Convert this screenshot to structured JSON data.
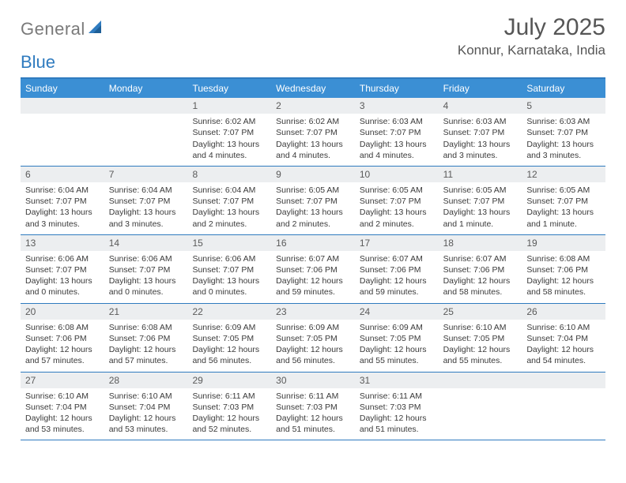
{
  "brand": {
    "part1": "General",
    "part2": "Blue"
  },
  "header": {
    "month_title": "July 2025",
    "location": "Konnur, Karnataka, India"
  },
  "colors": {
    "header_bar": "#3b8fd4",
    "accent_border": "#2f7bbf",
    "daynum_bg": "#eceef0",
    "logo_gray": "#7a7a7a",
    "logo_blue": "#2f7bbf",
    "text": "#3a3a3a"
  },
  "day_names": [
    "Sunday",
    "Monday",
    "Tuesday",
    "Wednesday",
    "Thursday",
    "Friday",
    "Saturday"
  ],
  "labels": {
    "sunrise_prefix": "Sunrise: ",
    "sunset_prefix": "Sunset: ",
    "daylight_prefix": "Daylight: "
  },
  "weeks": [
    [
      null,
      null,
      {
        "num": "1",
        "sunrise": "6:02 AM",
        "sunset": "7:07 PM",
        "daylight": "13 hours and 4 minutes."
      },
      {
        "num": "2",
        "sunrise": "6:02 AM",
        "sunset": "7:07 PM",
        "daylight": "13 hours and 4 minutes."
      },
      {
        "num": "3",
        "sunrise": "6:03 AM",
        "sunset": "7:07 PM",
        "daylight": "13 hours and 4 minutes."
      },
      {
        "num": "4",
        "sunrise": "6:03 AM",
        "sunset": "7:07 PM",
        "daylight": "13 hours and 3 minutes."
      },
      {
        "num": "5",
        "sunrise": "6:03 AM",
        "sunset": "7:07 PM",
        "daylight": "13 hours and 3 minutes."
      }
    ],
    [
      {
        "num": "6",
        "sunrise": "6:04 AM",
        "sunset": "7:07 PM",
        "daylight": "13 hours and 3 minutes."
      },
      {
        "num": "7",
        "sunrise": "6:04 AM",
        "sunset": "7:07 PM",
        "daylight": "13 hours and 3 minutes."
      },
      {
        "num": "8",
        "sunrise": "6:04 AM",
        "sunset": "7:07 PM",
        "daylight": "13 hours and 2 minutes."
      },
      {
        "num": "9",
        "sunrise": "6:05 AM",
        "sunset": "7:07 PM",
        "daylight": "13 hours and 2 minutes."
      },
      {
        "num": "10",
        "sunrise": "6:05 AM",
        "sunset": "7:07 PM",
        "daylight": "13 hours and 2 minutes."
      },
      {
        "num": "11",
        "sunrise": "6:05 AM",
        "sunset": "7:07 PM",
        "daylight": "13 hours and 1 minute."
      },
      {
        "num": "12",
        "sunrise": "6:05 AM",
        "sunset": "7:07 PM",
        "daylight": "13 hours and 1 minute."
      }
    ],
    [
      {
        "num": "13",
        "sunrise": "6:06 AM",
        "sunset": "7:07 PM",
        "daylight": "13 hours and 0 minutes."
      },
      {
        "num": "14",
        "sunrise": "6:06 AM",
        "sunset": "7:07 PM",
        "daylight": "13 hours and 0 minutes."
      },
      {
        "num": "15",
        "sunrise": "6:06 AM",
        "sunset": "7:07 PM",
        "daylight": "13 hours and 0 minutes."
      },
      {
        "num": "16",
        "sunrise": "6:07 AM",
        "sunset": "7:06 PM",
        "daylight": "12 hours and 59 minutes."
      },
      {
        "num": "17",
        "sunrise": "6:07 AM",
        "sunset": "7:06 PM",
        "daylight": "12 hours and 59 minutes."
      },
      {
        "num": "18",
        "sunrise": "6:07 AM",
        "sunset": "7:06 PM",
        "daylight": "12 hours and 58 minutes."
      },
      {
        "num": "19",
        "sunrise": "6:08 AM",
        "sunset": "7:06 PM",
        "daylight": "12 hours and 58 minutes."
      }
    ],
    [
      {
        "num": "20",
        "sunrise": "6:08 AM",
        "sunset": "7:06 PM",
        "daylight": "12 hours and 57 minutes."
      },
      {
        "num": "21",
        "sunrise": "6:08 AM",
        "sunset": "7:06 PM",
        "daylight": "12 hours and 57 minutes."
      },
      {
        "num": "22",
        "sunrise": "6:09 AM",
        "sunset": "7:05 PM",
        "daylight": "12 hours and 56 minutes."
      },
      {
        "num": "23",
        "sunrise": "6:09 AM",
        "sunset": "7:05 PM",
        "daylight": "12 hours and 56 minutes."
      },
      {
        "num": "24",
        "sunrise": "6:09 AM",
        "sunset": "7:05 PM",
        "daylight": "12 hours and 55 minutes."
      },
      {
        "num": "25",
        "sunrise": "6:10 AM",
        "sunset": "7:05 PM",
        "daylight": "12 hours and 55 minutes."
      },
      {
        "num": "26",
        "sunrise": "6:10 AM",
        "sunset": "7:04 PM",
        "daylight": "12 hours and 54 minutes."
      }
    ],
    [
      {
        "num": "27",
        "sunrise": "6:10 AM",
        "sunset": "7:04 PM",
        "daylight": "12 hours and 53 minutes."
      },
      {
        "num": "28",
        "sunrise": "6:10 AM",
        "sunset": "7:04 PM",
        "daylight": "12 hours and 53 minutes."
      },
      {
        "num": "29",
        "sunrise": "6:11 AM",
        "sunset": "7:03 PM",
        "daylight": "12 hours and 52 minutes."
      },
      {
        "num": "30",
        "sunrise": "6:11 AM",
        "sunset": "7:03 PM",
        "daylight": "12 hours and 51 minutes."
      },
      {
        "num": "31",
        "sunrise": "6:11 AM",
        "sunset": "7:03 PM",
        "daylight": "12 hours and 51 minutes."
      },
      null,
      null
    ]
  ]
}
